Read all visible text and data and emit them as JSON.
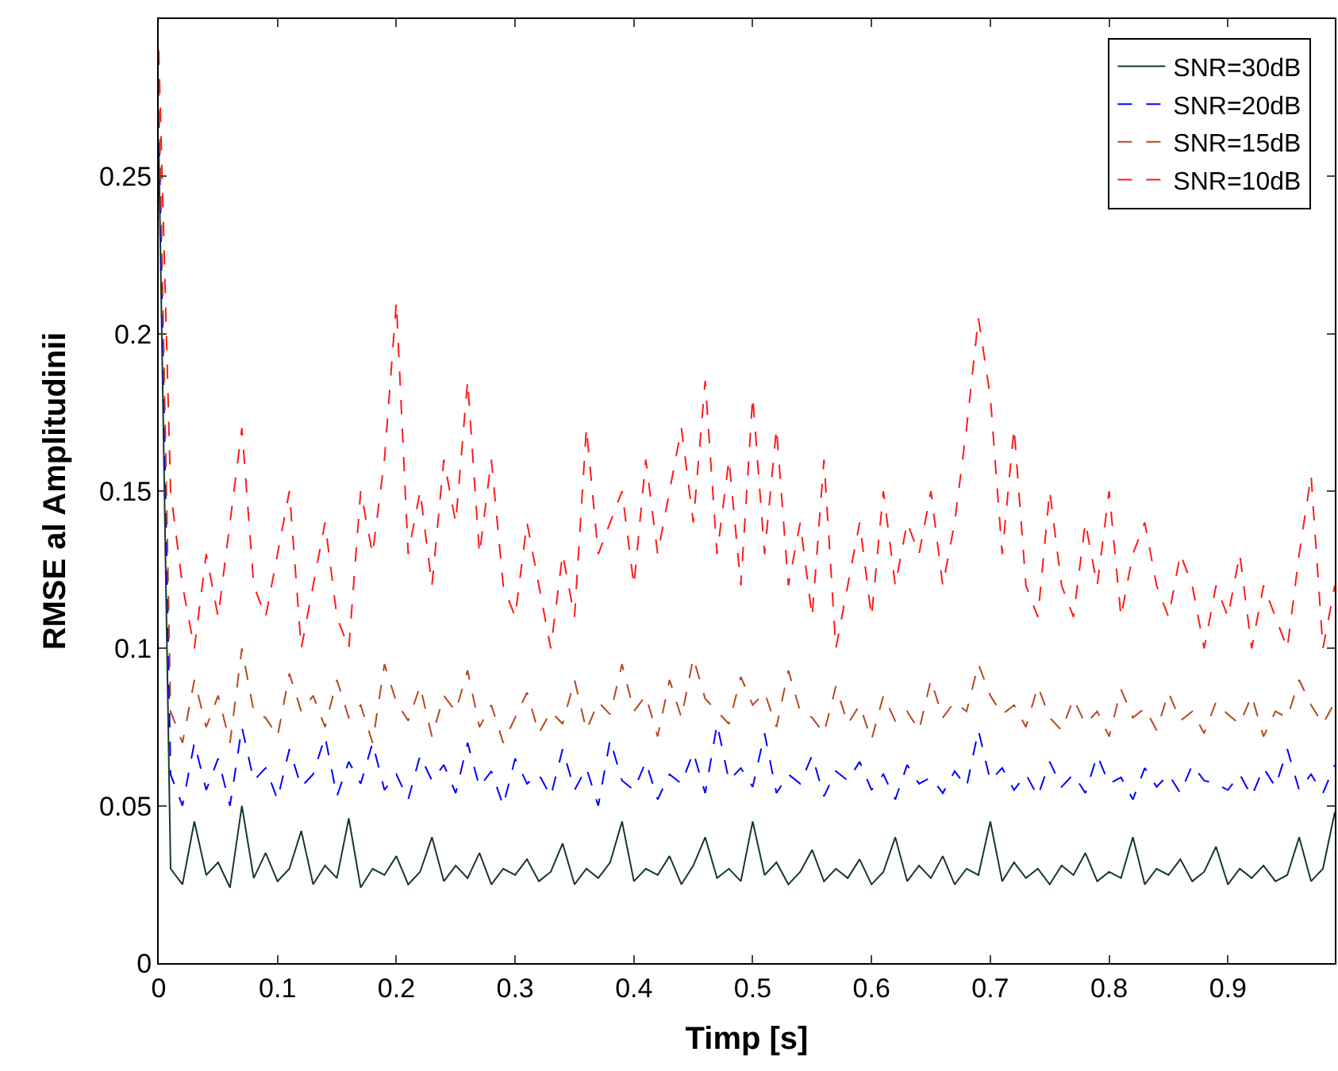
{
  "chart_data": {
    "type": "line",
    "xlabel": "Timp [s]",
    "ylabel": "RMSE al Amplitudinii",
    "x": [
      0,
      0.01,
      0.02,
      0.03,
      0.04,
      0.05,
      0.06,
      0.07,
      0.08,
      0.09,
      0.1,
      0.11,
      0.12,
      0.13,
      0.14,
      0.15,
      0.16,
      0.17,
      0.18,
      0.19,
      0.2,
      0.21,
      0.22,
      0.23,
      0.24,
      0.25,
      0.26,
      0.27,
      0.28,
      0.29,
      0.3,
      0.31,
      0.32,
      0.33,
      0.34,
      0.35,
      0.36,
      0.37,
      0.38,
      0.39,
      0.4,
      0.41,
      0.42,
      0.43,
      0.44,
      0.45,
      0.46,
      0.47,
      0.48,
      0.49,
      0.5,
      0.51,
      0.52,
      0.53,
      0.54,
      0.55,
      0.56,
      0.57,
      0.58,
      0.59,
      0.6,
      0.61,
      0.62,
      0.63,
      0.64,
      0.65,
      0.66,
      0.67,
      0.68,
      0.69,
      0.7,
      0.71,
      0.72,
      0.73,
      0.74,
      0.75,
      0.76,
      0.77,
      0.78,
      0.79,
      0.8,
      0.81,
      0.82,
      0.83,
      0.84,
      0.85,
      0.86,
      0.87,
      0.88,
      0.89,
      0.9,
      0.91,
      0.92,
      0.93,
      0.94,
      0.95,
      0.96,
      0.97,
      0.98,
      0.99
    ],
    "series": [
      {
        "name": "SNR=30dB",
        "color": "#16392a",
        "line_style": "solid",
        "values": [
          0.26,
          0.03,
          0.025,
          0.045,
          0.028,
          0.032,
          0.024,
          0.05,
          0.027,
          0.035,
          0.026,
          0.03,
          0.042,
          0.025,
          0.031,
          0.027,
          0.046,
          0.024,
          0.03,
          0.028,
          0.034,
          0.025,
          0.029,
          0.04,
          0.026,
          0.031,
          0.027,
          0.035,
          0.025,
          0.03,
          0.028,
          0.033,
          0.026,
          0.029,
          0.038,
          0.025,
          0.03,
          0.027,
          0.032,
          0.045,
          0.026,
          0.03,
          0.028,
          0.034,
          0.025,
          0.031,
          0.04,
          0.027,
          0.03,
          0.026,
          0.045,
          0.028,
          0.032,
          0.025,
          0.029,
          0.036,
          0.026,
          0.03,
          0.027,
          0.033,
          0.025,
          0.029,
          0.04,
          0.026,
          0.031,
          0.027,
          0.034,
          0.025,
          0.03,
          0.028,
          0.045,
          0.026,
          0.032,
          0.027,
          0.03,
          0.025,
          0.031,
          0.028,
          0.035,
          0.026,
          0.029,
          0.027,
          0.04,
          0.025,
          0.03,
          0.028,
          0.033,
          0.026,
          0.029,
          0.037,
          0.025,
          0.03,
          0.027,
          0.031,
          0.026,
          0.028,
          0.04,
          0.026,
          0.03,
          0.048
        ]
      },
      {
        "name": "SNR=20dB",
        "color": "#0000ff",
        "line_style": "dashed",
        "values": [
          0.27,
          0.06,
          0.05,
          0.07,
          0.055,
          0.065,
          0.05,
          0.075,
          0.058,
          0.062,
          0.052,
          0.068,
          0.056,
          0.06,
          0.072,
          0.053,
          0.064,
          0.057,
          0.07,
          0.055,
          0.06,
          0.052,
          0.066,
          0.058,
          0.063,
          0.054,
          0.07,
          0.056,
          0.061,
          0.05,
          0.065,
          0.057,
          0.06,
          0.053,
          0.068,
          0.055,
          0.062,
          0.05,
          0.071,
          0.058,
          0.055,
          0.064,
          0.052,
          0.06,
          0.057,
          0.067,
          0.054,
          0.076,
          0.058,
          0.062,
          0.056,
          0.073,
          0.054,
          0.06,
          0.057,
          0.066,
          0.053,
          0.061,
          0.058,
          0.064,
          0.055,
          0.06,
          0.052,
          0.063,
          0.057,
          0.059,
          0.054,
          0.061,
          0.056,
          0.074,
          0.058,
          0.062,
          0.055,
          0.06,
          0.053,
          0.064,
          0.056,
          0.06,
          0.054,
          0.066,
          0.057,
          0.059,
          0.052,
          0.062,
          0.056,
          0.06,
          0.054,
          0.063,
          0.058,
          0.057,
          0.055,
          0.06,
          0.053,
          0.062,
          0.056,
          0.068,
          0.055,
          0.06,
          0.054,
          0.063
        ]
      },
      {
        "name": "SNR=15dB",
        "color": "#b5491f",
        "line_style": "dashed",
        "values": [
          0.28,
          0.08,
          0.07,
          0.09,
          0.075,
          0.085,
          0.07,
          0.1,
          0.08,
          0.078,
          0.072,
          0.092,
          0.08,
          0.085,
          0.075,
          0.09,
          0.078,
          0.082,
          0.07,
          0.095,
          0.083,
          0.077,
          0.088,
          0.072,
          0.085,
          0.08,
          0.093,
          0.075,
          0.082,
          0.07,
          0.078,
          0.086,
          0.073,
          0.08,
          0.076,
          0.09,
          0.074,
          0.083,
          0.079,
          0.095,
          0.08,
          0.085,
          0.072,
          0.09,
          0.078,
          0.097,
          0.084,
          0.08,
          0.076,
          0.091,
          0.082,
          0.086,
          0.075,
          0.093,
          0.08,
          0.078,
          0.073,
          0.088,
          0.076,
          0.082,
          0.071,
          0.085,
          0.077,
          0.08,
          0.074,
          0.09,
          0.078,
          0.083,
          0.08,
          0.095,
          0.085,
          0.079,
          0.082,
          0.075,
          0.088,
          0.078,
          0.074,
          0.084,
          0.076,
          0.08,
          0.072,
          0.087,
          0.078,
          0.081,
          0.074,
          0.086,
          0.077,
          0.08,
          0.073,
          0.083,
          0.079,
          0.076,
          0.085,
          0.072,
          0.08,
          0.078,
          0.09,
          0.082,
          0.076,
          0.083
        ]
      },
      {
        "name": "SNR=10dB",
        "color": "#ff1a1a",
        "line_style": "dashed",
        "values": [
          0.29,
          0.15,
          0.12,
          0.1,
          0.13,
          0.11,
          0.14,
          0.17,
          0.12,
          0.11,
          0.13,
          0.15,
          0.1,
          0.12,
          0.14,
          0.11,
          0.1,
          0.15,
          0.13,
          0.16,
          0.21,
          0.13,
          0.15,
          0.12,
          0.16,
          0.14,
          0.185,
          0.13,
          0.16,
          0.12,
          0.11,
          0.14,
          0.12,
          0.1,
          0.13,
          0.11,
          0.17,
          0.13,
          0.14,
          0.15,
          0.12,
          0.16,
          0.13,
          0.15,
          0.17,
          0.14,
          0.185,
          0.13,
          0.16,
          0.12,
          0.18,
          0.13,
          0.17,
          0.12,
          0.14,
          0.11,
          0.16,
          0.1,
          0.12,
          0.14,
          0.11,
          0.15,
          0.12,
          0.14,
          0.13,
          0.15,
          0.12,
          0.14,
          0.17,
          0.205,
          0.18,
          0.13,
          0.17,
          0.12,
          0.11,
          0.15,
          0.12,
          0.11,
          0.14,
          0.12,
          0.15,
          0.11,
          0.13,
          0.14,
          0.12,
          0.11,
          0.13,
          0.12,
          0.1,
          0.12,
          0.11,
          0.13,
          0.1,
          0.12,
          0.11,
          0.1,
          0.13,
          0.155,
          0.1,
          0.12
        ]
      }
    ],
    "xlim": [
      0,
      0.99
    ],
    "xticks": [
      0,
      0.1,
      0.2,
      0.3,
      0.4,
      0.5,
      0.6,
      0.7,
      0.8,
      0.9
    ],
    "ylim": [
      0,
      0.3
    ],
    "yticks": [
      0,
      0.05,
      0.1,
      0.15,
      0.2,
      0.25
    ],
    "legend": "top right",
    "marker": "none"
  }
}
